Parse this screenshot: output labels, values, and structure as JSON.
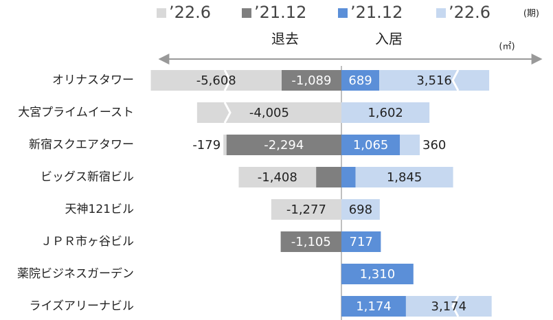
{
  "chart_data": {
    "type": "diverging-bar",
    "unit_left": "退去",
    "unit_right": "入居",
    "period_label": "(期)",
    "unit": "(㎡)",
    "categories": [
      "オリナスタワー",
      "大宮プライムイースト",
      "新宿スクエアタワー",
      "ビッグス新宿ビル",
      "天神121ビル",
      "ＪＰＲ市ヶ谷ビル",
      "薬院ビジネスガーデン",
      "ライズアリーナビル"
    ],
    "series": [
      {
        "name": "’22.6",
        "color": "#d9d9d9",
        "values": [
          -5608,
          -4005,
          -179,
          -1408,
          -1277,
          null,
          null,
          null
        ],
        "value_labels": [
          "-5,608",
          "-4,005",
          "-179",
          "-1,408",
          "-1,277",
          null,
          null,
          null
        ]
      },
      {
        "name": "’21.12",
        "color": "#7f7f7f",
        "values": [
          -1089,
          null,
          -2294,
          -461,
          null,
          -1105,
          null,
          null
        ],
        "value_labels": [
          "-1,089",
          null,
          "-2,294",
          "-461",
          null,
          "-1,105",
          null,
          null
        ]
      },
      {
        "name": "’21.12",
        "color": "#5b8fd8",
        "values": [
          689,
          null,
          1065,
          258,
          null,
          717,
          1310,
          1174
        ],
        "value_labels": [
          "689",
          null,
          "1,065",
          "258",
          null,
          "717",
          "1,310",
          "1,174"
        ]
      },
      {
        "name": "’22.6",
        "color": "#c6d8f0",
        "values": [
          3516,
          1602,
          360,
          1845,
          698,
          null,
          null,
          3174
        ],
        "value_labels": [
          "3,516",
          "1,602",
          "360",
          "1,845",
          "698",
          null,
          null,
          "3,174"
        ]
      }
    ]
  }
}
